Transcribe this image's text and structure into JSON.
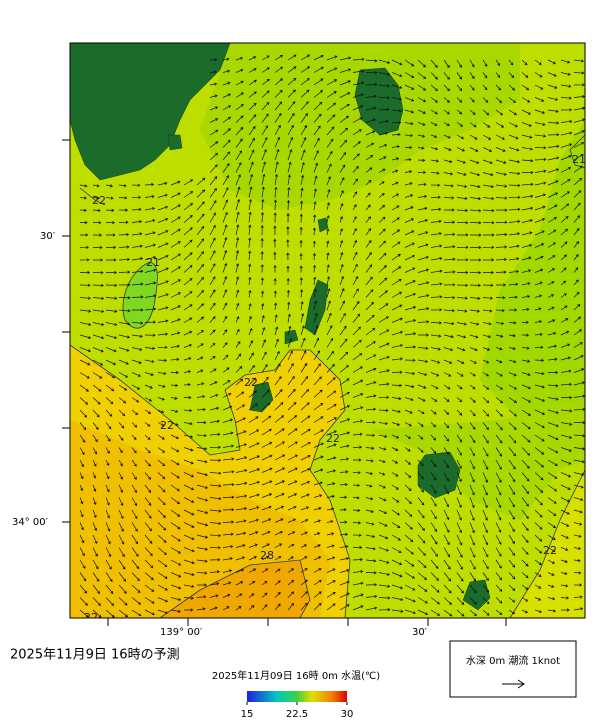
{
  "header": {
    "title": "2025年11月9日 16時の予測"
  },
  "map": {
    "lat_labels": [
      "30′",
      "34° 00′"
    ],
    "lon_labels": [
      "139° 00′",
      "30′"
    ],
    "contour_labels": [
      "21",
      "22",
      "21",
      "22",
      "22",
      "22",
      "22",
      "28",
      "22"
    ]
  },
  "colorbar": {
    "title": "2025年11月09日 16時 0m 水温(℃)",
    "range": [
      15,
      30
    ],
    "ticks": [
      15,
      22.5,
      30
    ]
  },
  "legend": {
    "label": "水深 0m 潮流 1knot"
  }
}
